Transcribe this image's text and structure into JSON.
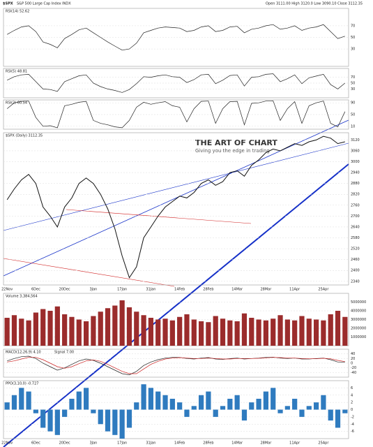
{
  "header": {
    "symbol": "$SPX",
    "name": "S&P 500 Large Cap Index INDX",
    "stats": "Open 3111.00  High 3120.0  Low 3090.10  Close 3112.35"
  },
  "watermark": {
    "title": "THE ART OF CHART",
    "tagline": "Giving you the edge in trading"
  },
  "chart_data": [
    {
      "type": "line",
      "ylim": [
        0,
        100
      ],
      "yticks": [
        30,
        50,
        70
      ],
      "grid": true,
      "series": [
        {
          "name": "RSI(14) 52.62",
          "color": "#222222",
          "values": [
            55,
            62,
            68,
            70,
            60,
            42,
            38,
            32,
            48,
            55,
            63,
            66,
            58,
            50,
            42,
            35,
            28,
            30,
            40,
            58,
            62,
            66,
            68,
            67,
            66,
            60,
            62,
            68,
            70,
            60,
            62,
            68,
            69,
            58,
            64,
            66,
            70,
            72,
            64,
            66,
            70,
            62,
            66,
            68,
            72,
            60,
            48,
            52
          ]
        }
      ]
    },
    {
      "type": "line",
      "ylim": [
        0,
        100
      ],
      "yticks": [
        30,
        50,
        70
      ],
      "grid": true,
      "series": [
        {
          "name": "RSI(5) 48.81",
          "color": "#222222",
          "values": [
            60,
            72,
            78,
            80,
            55,
            30,
            28,
            22,
            55,
            65,
            75,
            78,
            50,
            38,
            30,
            25,
            18,
            28,
            48,
            72,
            70,
            75,
            78,
            72,
            70,
            52,
            62,
            78,
            80,
            48,
            60,
            76,
            78,
            40,
            70,
            72,
            80,
            82,
            55,
            65,
            78,
            48,
            68,
            74,
            80,
            45,
            30,
            50
          ]
        }
      ]
    },
    {
      "type": "line",
      "ylim": [
        0,
        100
      ],
      "yticks": [
        10,
        50,
        90
      ],
      "grid": true,
      "series": [
        {
          "name": "RSI(2) 60.54",
          "color": "#222222",
          "values": [
            70,
            90,
            95,
            96,
            40,
            10,
            12,
            5,
            80,
            85,
            92,
            95,
            30,
            20,
            15,
            8,
            5,
            30,
            75,
            92,
            85,
            90,
            94,
            80,
            75,
            25,
            70,
            95,
            96,
            20,
            70,
            94,
            95,
            15,
            88,
            90,
            96,
            97,
            30,
            70,
            94,
            20,
            80,
            90,
            96,
            20,
            8,
            60
          ]
        }
      ]
    },
    {
      "type": "line",
      "ylim": [
        2320,
        3160
      ],
      "yticks": [
        2340,
        2400,
        2460,
        2520,
        2580,
        2640,
        2700,
        2760,
        2820,
        2880,
        2940,
        3000,
        3060,
        3120
      ],
      "grid": true,
      "categories": [
        "22Nov",
        null,
        null,
        null,
        "6Dec",
        null,
        null,
        null,
        "20Dec",
        null,
        null,
        null,
        "3Jan",
        null,
        null,
        null,
        "17Jan",
        null,
        null,
        null,
        "31Jan",
        null,
        null,
        null,
        "14Feb",
        null,
        null,
        null,
        "28Feb",
        null,
        null,
        null,
        "14Mar",
        null,
        null,
        null,
        "28Mar",
        null,
        null,
        null,
        "11Apr",
        null,
        null,
        null,
        "25Apr",
        null,
        null,
        null
      ],
      "series": [
        {
          "name": "$SPX (Daily) 3112.35",
          "color": "#111111",
          "values": [
            2790,
            2850,
            2900,
            2930,
            2880,
            2750,
            2700,
            2640,
            2750,
            2800,
            2880,
            2910,
            2880,
            2820,
            2740,
            2630,
            2480,
            2360,
            2420,
            2580,
            2640,
            2700,
            2750,
            2780,
            2810,
            2800,
            2830,
            2880,
            2900,
            2870,
            2890,
            2940,
            2950,
            2920,
            2980,
            3010,
            3050,
            3070,
            3060,
            3080,
            3100,
            3090,
            3110,
            3120,
            3140,
            3130,
            3100,
            3110
          ]
        }
      ]
    },
    {
      "type": "bar",
      "ylim": [
        0,
        6000000
      ],
      "yticks": [
        1000000,
        2000000,
        3000000,
        4000000,
        5000000
      ],
      "grid": true,
      "series": [
        {
          "name": "Volume 3,384,564",
          "color": "#9b2c2c",
          "values": [
            3200000,
            3500000,
            3100000,
            2900000,
            3800000,
            4200000,
            4000000,
            4500000,
            3600000,
            3300000,
            3000000,
            2800000,
            3400000,
            3900000,
            4300000,
            4600000,
            5200000,
            4400000,
            3900000,
            3500000,
            3200000,
            3000000,
            3100000,
            2900000,
            3300000,
            3600000,
            3000000,
            2800000,
            2700000,
            3400000,
            3100000,
            2900000,
            2800000,
            3700000,
            3200000,
            3000000,
            2900000,
            3100000,
            3500000,
            3000000,
            2900000,
            3400000,
            3100000,
            3000000,
            2900000,
            3600000,
            4000000,
            3300000
          ]
        }
      ]
    },
    {
      "type": "line",
      "ylim": [
        -60,
        60
      ],
      "yticks": [
        -40,
        -20,
        0,
        20,
        40
      ],
      "grid": true,
      "series": [
        {
          "name": "MACD(12,26,9) 4.10",
          "color": "#222222",
          "values": [
            10,
            20,
            28,
            30,
            20,
            0,
            -15,
            -30,
            -20,
            -5,
            10,
            18,
            12,
            0,
            -15,
            -30,
            -45,
            -50,
            -35,
            -10,
            5,
            15,
            22,
            25,
            25,
            20,
            18,
            22,
            24,
            18,
            16,
            20,
            22,
            18,
            20,
            22,
            25,
            26,
            22,
            20,
            22,
            18,
            18,
            20,
            22,
            15,
            5,
            4
          ]
        },
        {
          "name": "Signal 7.00",
          "color": "#cc2222",
          "values": [
            5,
            10,
            18,
            25,
            25,
            15,
            0,
            -15,
            -22,
            -15,
            -2,
            10,
            14,
            8,
            -5,
            -20,
            -35,
            -45,
            -45,
            -25,
            -5,
            8,
            18,
            22,
            24,
            22,
            20,
            20,
            22,
            20,
            18,
            18,
            20,
            20,
            20,
            21,
            23,
            25,
            24,
            22,
            22,
            20,
            19,
            19,
            21,
            19,
            12,
            7
          ]
        }
      ]
    },
    {
      "type": "bar",
      "ylim": [
        -8,
        8
      ],
      "yticks": [
        -6,
        -4,
        -2,
        0,
        2,
        4,
        6
      ],
      "grid": true,
      "series": [
        {
          "name": "PPO(3,10,0) -0.727",
          "color": "#2f7bbf",
          "values": [
            2,
            4,
            6,
            5,
            -1,
            -5,
            -6,
            -7,
            -2,
            3,
            5,
            6,
            -1,
            -4,
            -6,
            -7,
            -8,
            -5,
            2,
            7,
            6,
            5,
            4,
            3,
            2,
            -2,
            1,
            4,
            5,
            -2,
            1,
            3,
            4,
            -3,
            2,
            3,
            5,
            6,
            -1,
            1,
            3,
            -2,
            1,
            2,
            4,
            -3,
            -5,
            -1
          ]
        }
      ]
    }
  ]
}
